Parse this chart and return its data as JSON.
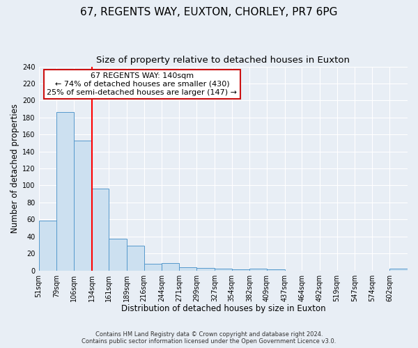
{
  "title": "67, REGENTS WAY, EUXTON, CHORLEY, PR7 6PG",
  "subtitle": "Size of property relative to detached houses in Euxton",
  "xlabel": "Distribution of detached houses by size in Euxton",
  "ylabel": "Number of detached properties",
  "bins": [
    "51sqm",
    "79sqm",
    "106sqm",
    "134sqm",
    "161sqm",
    "189sqm",
    "216sqm",
    "244sqm",
    "271sqm",
    "299sqm",
    "327sqm",
    "354sqm",
    "382sqm",
    "409sqm",
    "437sqm",
    "464sqm",
    "492sqm",
    "519sqm",
    "547sqm",
    "574sqm",
    "602sqm"
  ],
  "values": [
    59,
    186,
    153,
    96,
    37,
    29,
    8,
    9,
    4,
    3,
    2,
    1,
    2,
    1,
    0,
    0,
    0,
    0,
    0,
    0,
    2
  ],
  "bin_edges": [
    51,
    79,
    106,
    134,
    161,
    189,
    216,
    244,
    271,
    299,
    327,
    354,
    382,
    409,
    437,
    464,
    492,
    519,
    547,
    574,
    602
  ],
  "bar_color": "#cce0f0",
  "bar_edge_color": "#5599cc",
  "red_line_x": 134,
  "ylim": [
    0,
    240
  ],
  "yticks": [
    0,
    20,
    40,
    60,
    80,
    100,
    120,
    140,
    160,
    180,
    200,
    220,
    240
  ],
  "annotation_title": "67 REGENTS WAY: 140sqm",
  "annotation_line1": "← 74% of detached houses are smaller (430)",
  "annotation_line2": "25% of semi-detached houses are larger (147) →",
  "footer1": "Contains HM Land Registry data © Crown copyright and database right 2024.",
  "footer2": "Contains public sector information licensed under the Open Government Licence v3.0.",
  "background_color": "#e8eef5",
  "grid_color": "#ffffff",
  "title_fontsize": 11,
  "subtitle_fontsize": 9.5,
  "tick_fontsize": 7,
  "axis_label_fontsize": 8.5
}
